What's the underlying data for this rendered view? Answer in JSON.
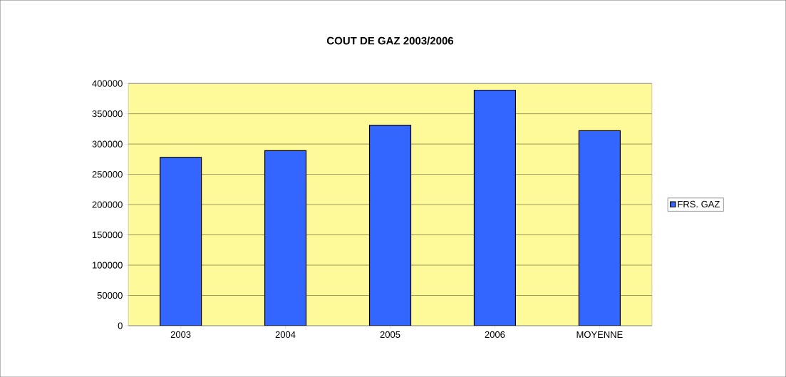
{
  "chart_data": {
    "type": "bar",
    "title": "COUT DE GAZ 2003/2006",
    "categories": [
      "2003",
      "2004",
      "2005",
      "2006",
      "MOYENNE"
    ],
    "series": [
      {
        "name": "FRS. GAZ",
        "color": "#3366ff",
        "values": [
          278000,
          289000,
          331000,
          389000,
          322000
        ]
      }
    ],
    "ylim": [
      0,
      400000
    ],
    "yticks": [
      0,
      50000,
      100000,
      150000,
      200000,
      250000,
      300000,
      350000,
      400000
    ],
    "grid": "y",
    "legend": "right"
  }
}
